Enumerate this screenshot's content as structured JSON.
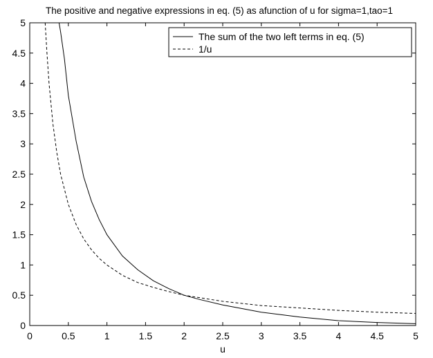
{
  "chart_data": {
    "type": "line",
    "title": "The positive and negative expressions in eq. (5) as afunction of u for sigma=1,tao=1",
    "xlabel": "u",
    "ylabel": "",
    "xlim": [
      0,
      5
    ],
    "ylim": [
      0,
      5
    ],
    "x_ticks": [
      "0",
      "0.5",
      "1",
      "1.5",
      "2",
      "2.5",
      "3",
      "3.5",
      "4",
      "4.5",
      "5"
    ],
    "y_ticks": [
      "0",
      "0.5",
      "1",
      "1.5",
      "2",
      "2.5",
      "3",
      "3.5",
      "4",
      "4.5",
      "5"
    ],
    "grid": false,
    "legend_position": "top-right",
    "series": [
      {
        "name": "The sum of the two left terms in eq. (5)",
        "style": "solid",
        "color": "#000000",
        "x": [
          0.38,
          0.4,
          0.45,
          0.5,
          0.6,
          0.7,
          0.8,
          0.9,
          1.0,
          1.2,
          1.4,
          1.6,
          1.8,
          2.0,
          2.2,
          2.5,
          3.0,
          3.5,
          4.0,
          4.5,
          5.0
        ],
        "y": [
          5.0,
          4.85,
          4.4,
          3.8,
          3.05,
          2.45,
          2.05,
          1.75,
          1.5,
          1.15,
          0.92,
          0.74,
          0.61,
          0.5,
          0.43,
          0.34,
          0.22,
          0.14,
          0.08,
          0.05,
          0.03
        ]
      },
      {
        "name": "1/u",
        "style": "dashed",
        "color": "#000000",
        "x": [
          0.2,
          0.22,
          0.25,
          0.3,
          0.35,
          0.4,
          0.5,
          0.6,
          0.7,
          0.8,
          0.9,
          1.0,
          1.2,
          1.4,
          1.6,
          1.8,
          2.0,
          2.5,
          3.0,
          3.5,
          4.0,
          4.5,
          5.0
        ],
        "y": [
          5.0,
          4.55,
          4.0,
          3.33,
          2.86,
          2.5,
          2.0,
          1.67,
          1.43,
          1.25,
          1.11,
          1.0,
          0.83,
          0.71,
          0.63,
          0.56,
          0.5,
          0.4,
          0.33,
          0.29,
          0.25,
          0.22,
          0.2
        ]
      }
    ]
  }
}
